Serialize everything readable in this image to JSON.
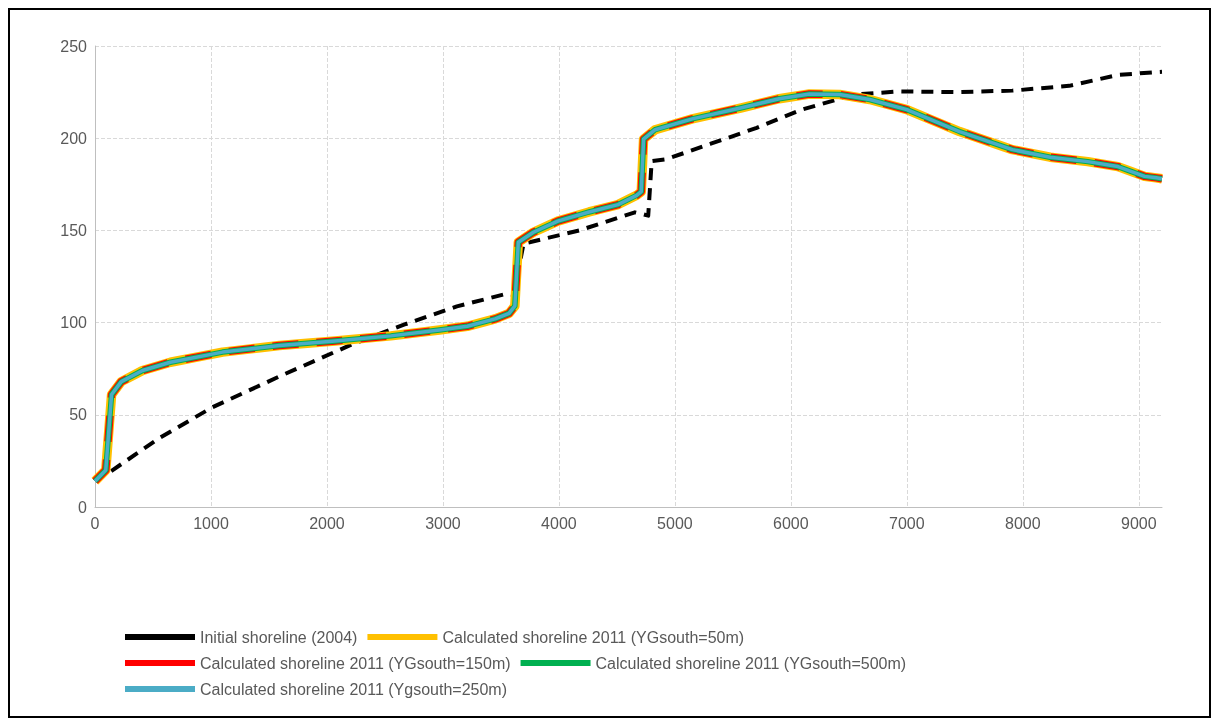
{
  "chart_data": {
    "type": "line",
    "xlim": [
      0,
      9200
    ],
    "xticks": [
      0,
      1000,
      2000,
      3000,
      4000,
      5000,
      6000,
      7000,
      8000,
      9000
    ],
    "ylim": [
      0,
      250
    ],
    "yticks": [
      0,
      50,
      100,
      150,
      200,
      250
    ],
    "grid": true,
    "legend": "bottom",
    "marker": "none",
    "series": [
      {
        "name": "Initial shoreline (2004)",
        "color": "#000000",
        "line_style": "dashed",
        "x": [
          140,
          560,
          1010,
          1590,
          2220,
          2670,
          3120,
          3540,
          3610,
          3695,
          4175,
          4655,
          4730,
          4770,
          4800,
          4925,
          5310,
          5705,
          6095,
          6550,
          6940,
          7420,
          7910,
          8400,
          8820,
          9140,
          9200
        ],
        "values": [
          19.5,
          37.6,
          54,
          70.8,
          88.3,
          99,
          108.8,
          115.5,
          115,
          142.8,
          150,
          159.8,
          158.7,
          158,
          187.6,
          188.6,
          197,
          205.6,
          215.5,
          223.7,
          225.4,
          225,
          225.8,
          228.4,
          234.3,
          235.8,
          236
        ]
      },
      {
        "name": "Calculated shoreline 2011 (YGsouth=50m)",
        "color": "#ffc000",
        "line_style": "solid",
        "x": [
          0,
          93,
          143,
          227,
          410,
          650,
          1100,
          1590,
          2070,
          2550,
          2970,
          3210,
          3450,
          3570,
          3620,
          3650,
          3780,
          3990,
          4260,
          4510,
          4670,
          4710,
          4730,
          4830,
          5150,
          5575,
          5900,
          6160,
          6420,
          6680,
          7000,
          7455,
          7910,
          8235,
          8560,
          8820,
          9050,
          9150,
          9200
        ],
        "values": [
          14,
          20,
          61,
          68,
          74,
          78.5,
          84,
          87.6,
          90,
          92.8,
          96,
          98,
          102,
          105,
          109,
          143.6,
          149,
          155,
          160,
          164,
          169,
          171,
          199.5,
          204.6,
          210.5,
          216.5,
          221.4,
          224,
          223.7,
          221,
          215.5,
          203.6,
          193.8,
          189.7,
          187.3,
          184.6,
          179.3,
          178.5,
          178
        ]
      },
      {
        "name": "Calculated shoreline 2011 (YGsouth=150m)",
        "color": "#ff0000",
        "line_style": "dashed",
        "x": [
          0,
          93,
          143,
          227,
          410,
          650,
          1100,
          1590,
          2070,
          2550,
          2970,
          3210,
          3450,
          3570,
          3620,
          3650,
          3780,
          3990,
          4260,
          4510,
          4670,
          4710,
          4730,
          4830,
          5150,
          5575,
          5900,
          6160,
          6420,
          6680,
          7000,
          7455,
          7910,
          8235,
          8560,
          8820,
          9050,
          9150,
          9200
        ],
        "values": [
          14,
          20,
          61,
          68,
          74,
          78.5,
          84,
          87.6,
          90,
          92.8,
          96,
          98,
          102,
          105,
          109,
          143.6,
          149,
          155,
          160,
          164,
          169,
          171,
          199.5,
          204.6,
          210.5,
          216.5,
          221.4,
          224,
          223.7,
          221,
          215.5,
          203.6,
          193.8,
          189.7,
          187.3,
          184.6,
          179.3,
          178.5,
          178
        ]
      },
      {
        "name": "Calculated shoreline 2011 (YGsouth=500m)",
        "color": "#00b050",
        "line_style": "solid",
        "x": [
          0,
          93,
          143,
          227,
          410,
          650,
          1100,
          1590,
          2070,
          2550,
          2970,
          3210,
          3450,
          3570,
          3620,
          3650,
          3780,
          3990,
          4260,
          4510,
          4670,
          4710,
          4730,
          4830,
          5150,
          5575,
          5900,
          6160,
          6420,
          6680,
          7000,
          7455,
          7910,
          8235,
          8560,
          8820,
          9050,
          9150,
          9200
        ],
        "values": [
          14,
          20,
          61,
          68,
          74,
          78.5,
          84,
          87.6,
          90,
          92.8,
          96,
          98,
          102,
          105,
          109,
          143.6,
          149,
          155,
          160,
          164,
          169,
          171,
          199.5,
          204.6,
          210.5,
          216.5,
          221.4,
          224,
          223.7,
          221,
          215.5,
          203.6,
          193.8,
          189.7,
          187.3,
          184.6,
          179.3,
          178.5,
          178
        ]
      },
      {
        "name": "Calculated shoreline 2011 (Ygsouth=250m)",
        "color": "#4bacc6",
        "line_style": "solid",
        "x": [
          0,
          93,
          143,
          227,
          410,
          650,
          1100,
          1590,
          2070,
          2550,
          2970,
          3210,
          3450,
          3570,
          3620,
          3650,
          3780,
          3990,
          4260,
          4510,
          4670,
          4710,
          4730,
          4830,
          5150,
          5575,
          5900,
          6160,
          6420,
          6680,
          7000,
          7455,
          7910,
          8235,
          8560,
          8820,
          9050,
          9150,
          9200
        ],
        "values": [
          14,
          20,
          61,
          68,
          74,
          78.5,
          84,
          87.6,
          90,
          92.8,
          96,
          98,
          102,
          105,
          109,
          143.6,
          149,
          155,
          160,
          164,
          169,
          171,
          199.5,
          204.6,
          210.5,
          216.5,
          221.4,
          224,
          223.7,
          221,
          215.5,
          203.6,
          193.8,
          189.7,
          187.3,
          184.6,
          179.3,
          178.5,
          178
        ]
      }
    ]
  }
}
